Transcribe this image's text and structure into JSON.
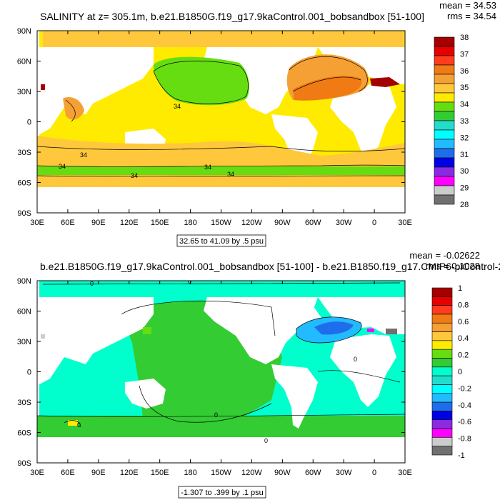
{
  "chart_data": [
    {
      "type": "heatmap",
      "title": "SALINITY at z= 305.1m, b.e21.B1850G.f19_g17.9kaControl.001_bobsandbox [51-100]",
      "stats": {
        "mean": "mean = 34.53",
        "rms": "rms = 34.54"
      },
      "range_label": "32.65 to 41.09 by .5 psu",
      "xlabel": "",
      "ylabel": "",
      "x_ticks": [
        "30E",
        "60E",
        "90E",
        "120E",
        "150E",
        "180",
        "150W",
        "120W",
        "90W",
        "60W",
        "30W",
        "0",
        "30E"
      ],
      "y_ticks": [
        "90N",
        "60N",
        "30N",
        "0",
        "30S",
        "60S",
        "90S"
      ],
      "colorbar": {
        "labels": [
          "38",
          "37",
          "36",
          "35",
          "34",
          "33",
          "32",
          "31",
          "30",
          "29",
          "28"
        ],
        "colors": [
          "#a50000",
          "#e60000",
          "#ff3c1e",
          "#f07a14",
          "#f5a034",
          "#ffc83c",
          "#ffeb00",
          "#66dd11",
          "#33cc33",
          "#22ddcc",
          "#00ffff",
          "#22bbff",
          "#1e6eeb",
          "#0000e6",
          "#8a2be2",
          "#ff00ff",
          "#cccccc",
          "#707070"
        ]
      },
      "contour_labels": [
        "34",
        "34",
        "34",
        "34",
        "34",
        "34"
      ],
      "regions": [
        {
          "name": "background",
          "level": "35"
        },
        {
          "name": "north-pacific",
          "level": "34"
        },
        {
          "name": "north-atlantic",
          "level": "36"
        },
        {
          "name": "southern-ocean-band",
          "level": "34"
        },
        {
          "name": "mediterranean",
          "level": "38"
        }
      ]
    },
    {
      "type": "heatmap",
      "title": "b.e21.B1850G.f19_g17.9kaControl.001_bobsandbox [51-100] - b.e21.B1850.f19_g17.CMIP6-piControl-2",
      "stats": {
        "mean": "mean = -0.02622",
        "rms": "rms = 0.1028"
      },
      "range_label": "-1.307 to .399 by .1 psu",
      "xlabel": "",
      "ylabel": "",
      "x_ticks": [
        "30E",
        "60E",
        "90E",
        "120E",
        "150E",
        "180",
        "150W",
        "120W",
        "90W",
        "60W",
        "30W",
        "0",
        "30E"
      ],
      "y_ticks": [
        "90N",
        "60N",
        "30N",
        "0",
        "30S",
        "60S",
        "90S"
      ],
      "colorbar": {
        "labels": [
          "1",
          "0.8",
          "0.6",
          "0.4",
          "0.2",
          "0",
          "-0.2",
          "-0.4",
          "-0.6",
          "-0.8",
          "-1"
        ],
        "colors": [
          "#a50000",
          "#e60000",
          "#ff3c1e",
          "#f07a14",
          "#f5a034",
          "#ffc83c",
          "#ffeb00",
          "#66dd11",
          "#33cc33",
          "#00ffcc",
          "#22ddcc",
          "#00ffff",
          "#22bbff",
          "#1e6eeb",
          "#0000e6",
          "#8a2be2",
          "#ff00ff",
          "#cccccc",
          "#707070"
        ]
      },
      "contour_labels": [
        "0",
        "0",
        "0",
        "0",
        "0",
        "0"
      ],
      "regions": [
        {
          "name": "background",
          "level": "0"
        },
        {
          "name": "pacific",
          "level": "0.1"
        },
        {
          "name": "north-atlantic",
          "level": "-0.4"
        },
        {
          "name": "southern-ocean",
          "level": "0.1"
        }
      ]
    }
  ]
}
